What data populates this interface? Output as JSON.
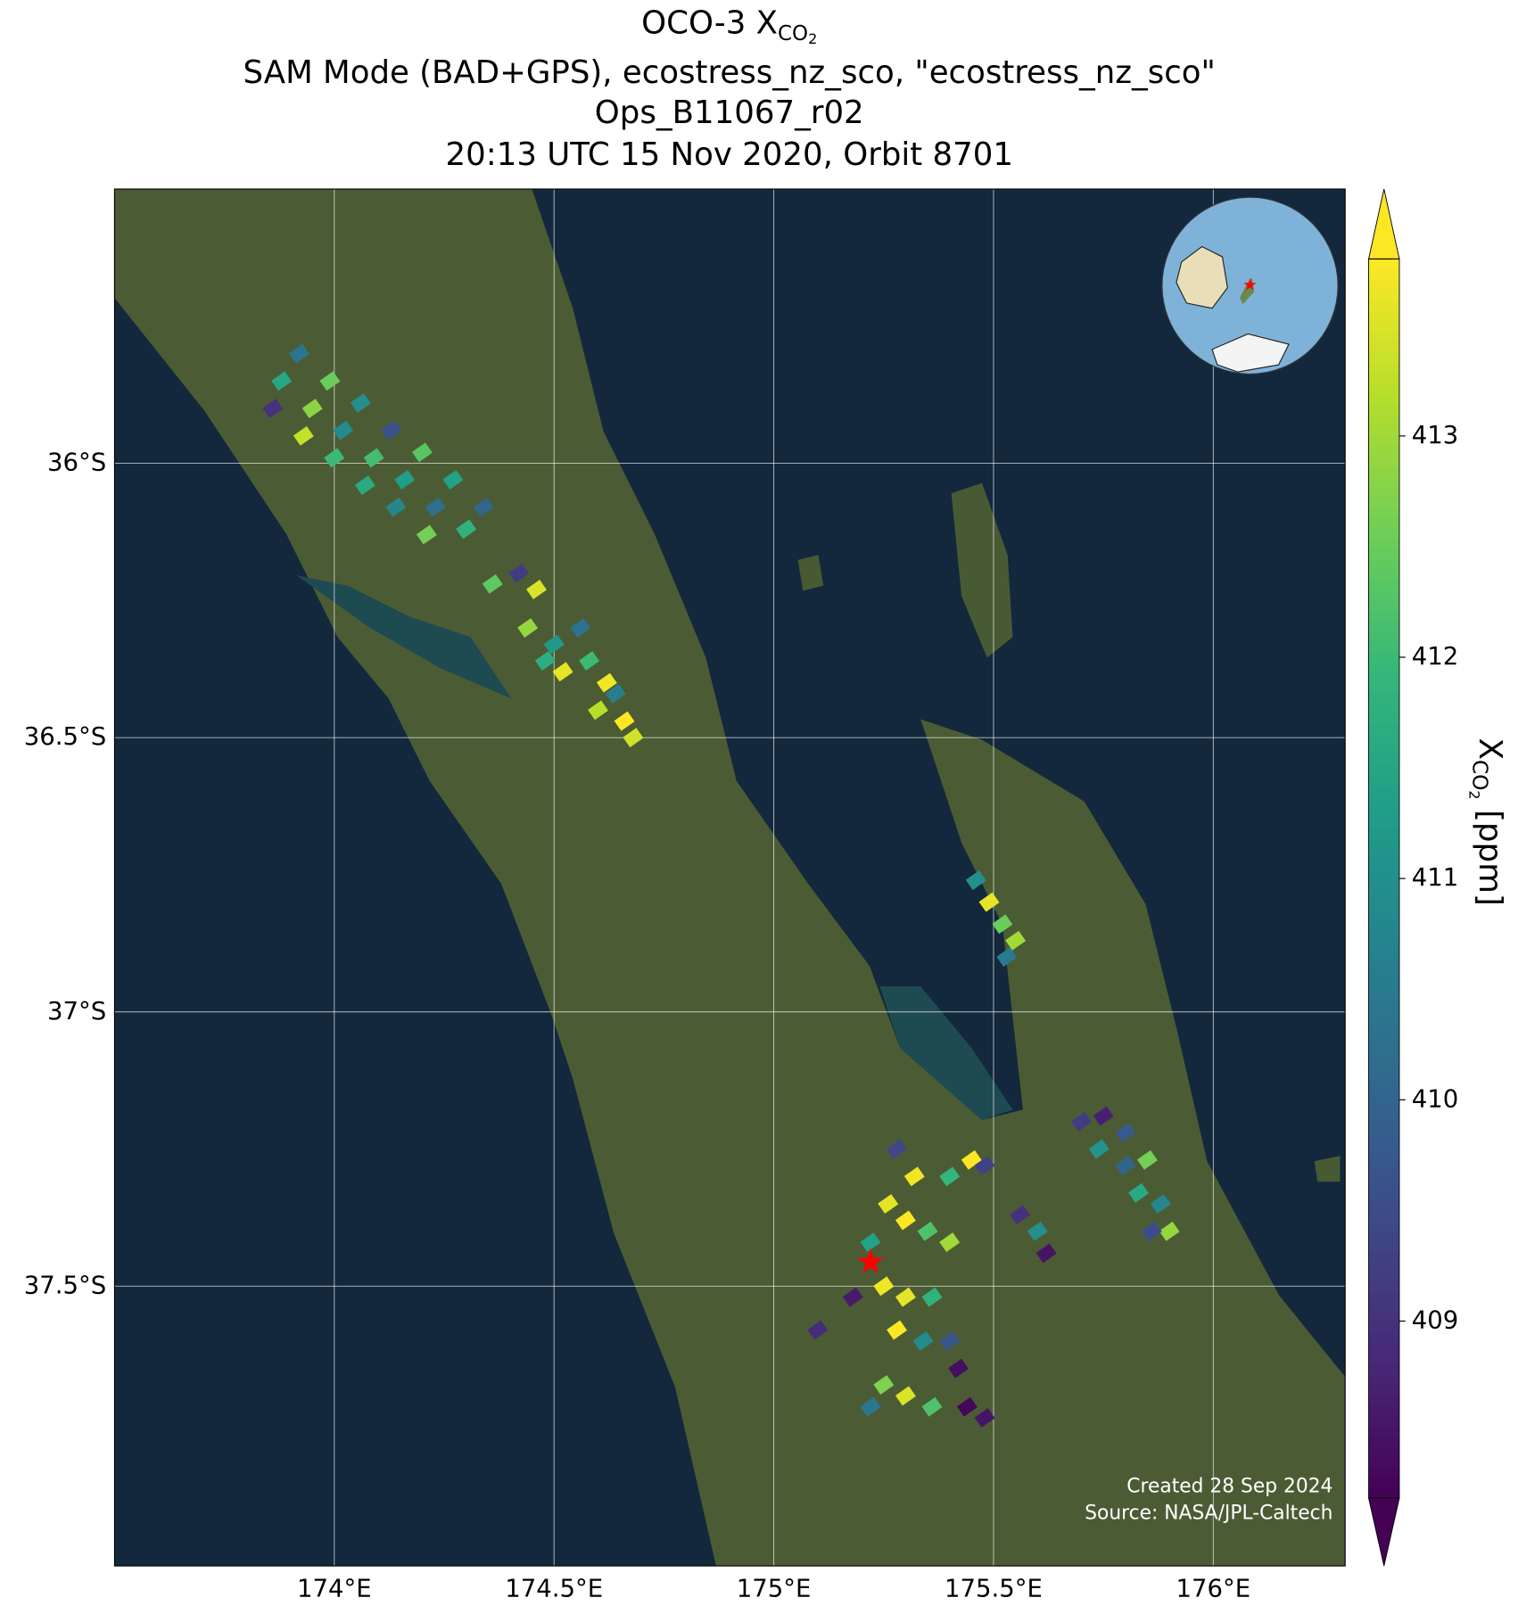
{
  "chart_data": {
    "type": "map",
    "title": {
      "main": "OCO-3 X",
      "sub": "CO",
      "subsub": "2"
    },
    "title_lines": [
      "SAM Mode (BAD+GPS), ecostress_nz_sco, \"ecostress_nz_sco\"",
      "Ops_B11067_r02",
      "20:13 UTC 15 Nov 2020, Orbit 8701"
    ],
    "xlim": [
      173.5,
      176.3
    ],
    "ylim": [
      -38.01,
      -35.5
    ],
    "xticks": [
      {
        "value": 174,
        "label": "174°E"
      },
      {
        "value": 174.5,
        "label": "174.5°E"
      },
      {
        "value": 175,
        "label": "175°E"
      },
      {
        "value": 175.5,
        "label": "175.5°E"
      },
      {
        "value": 176,
        "label": "176°E"
      }
    ],
    "yticks": [
      {
        "value": -36,
        "label": "36°S"
      },
      {
        "value": -36.5,
        "label": "36.5°S"
      },
      {
        "value": -37,
        "label": "37°S"
      },
      {
        "value": -37.5,
        "label": "37.5°S"
      }
    ],
    "grid": true,
    "colorbar": {
      "label": {
        "main": "X",
        "sub": "CO",
        "subsub": "2",
        "unit": " [ppm]"
      },
      "clim": [
        408.2,
        413.8
      ],
      "ticks": [
        409,
        410,
        411,
        412,
        413
      ],
      "colormap": [
        "#440154",
        "#482878",
        "#3e4989",
        "#31688e",
        "#26828e",
        "#1f9e89",
        "#35b779",
        "#6ece58",
        "#b5de2b",
        "#fde725"
      ]
    },
    "target": {
      "lon": 175.22,
      "lat": -37.46,
      "color": "#ff0000"
    },
    "footprints": {
      "lon": [
        173.88,
        173.95,
        174.02,
        174.09,
        174.16,
        174.23,
        174.3,
        173.92,
        173.99,
        174.06,
        174.13,
        174.2,
        174.27,
        174.34,
        173.86,
        173.93,
        174.0,
        174.07,
        174.14,
        174.21,
        174.36,
        174.42,
        174.46,
        174.44,
        174.5,
        174.56,
        174.52,
        174.58,
        174.62,
        174.6,
        174.66,
        174.64,
        174.68,
        174.48,
        175.46,
        175.49,
        175.52,
        175.55,
        175.53,
        175.7,
        175.75,
        175.8,
        175.74,
        175.8,
        175.85,
        175.83,
        175.88,
        175.9,
        175.86,
        175.28,
        175.32,
        175.4,
        175.45,
        175.48,
        175.26,
        175.3,
        175.35,
        175.22,
        175.4,
        175.56,
        175.6,
        175.62,
        175.25,
        175.3,
        175.36,
        175.18,
        175.28,
        175.34,
        175.4,
        175.42,
        175.25,
        175.3,
        175.36,
        175.44,
        175.48,
        175.22,
        175.1
      ],
      "lat": [
        -35.85,
        -35.9,
        -35.94,
        -35.99,
        -36.03,
        -36.08,
        -36.12,
        -35.8,
        -35.85,
        -35.89,
        -35.94,
        -35.98,
        -36.03,
        -36.08,
        -35.9,
        -35.95,
        -35.99,
        -36.04,
        -36.08,
        -36.13,
        -36.22,
        -36.2,
        -36.23,
        -36.3,
        -36.33,
        -36.3,
        -36.38,
        -36.36,
        -36.4,
        -36.45,
        -36.47,
        -36.42,
        -36.5,
        -36.36,
        -36.76,
        -36.8,
        -36.84,
        -36.87,
        -36.9,
        -37.2,
        -37.19,
        -37.22,
        -37.25,
        -37.28,
        -37.27,
        -37.33,
        -37.35,
        -37.4,
        -37.4,
        -37.25,
        -37.3,
        -37.3,
        -37.27,
        -37.28,
        -37.35,
        -37.38,
        -37.4,
        -37.42,
        -37.42,
        -37.37,
        -37.4,
        -37.44,
        -37.5,
        -37.52,
        -37.52,
        -37.52,
        -37.58,
        -37.6,
        -37.6,
        -37.65,
        -37.68,
        -37.7,
        -37.72,
        -37.72,
        -37.74,
        -37.72,
        -37.58
      ],
      "values": [
        411.5,
        412.8,
        410.9,
        412.1,
        411.3,
        410.2,
        411.8,
        410.4,
        412.5,
        411.0,
        409.6,
        412.3,
        411.4,
        410.0,
        409.0,
        413.3,
        412.0,
        411.6,
        410.8,
        412.6,
        412.4,
        409.2,
        413.5,
        412.9,
        411.2,
        410.3,
        413.6,
        412.0,
        413.7,
        413.2,
        413.8,
        410.6,
        413.4,
        411.7,
        411.0,
        413.6,
        412.5,
        413.0,
        410.5,
        409.2,
        408.7,
        409.8,
        411.1,
        410.0,
        412.6,
        411.6,
        410.8,
        412.9,
        409.5,
        409.4,
        413.7,
        411.9,
        413.8,
        409.3,
        413.6,
        413.9,
        412.2,
        411.4,
        413.0,
        409.0,
        411.0,
        408.5,
        413.7,
        413.6,
        411.8,
        408.6,
        413.8,
        410.9,
        409.7,
        408.4,
        412.7,
        413.5,
        412.2,
        408.3,
        408.5,
        410.4,
        408.9
      ]
    },
    "credits": [
      "Created 28 Sep 2024",
      "Source: NASA/JPL-Caltech"
    ]
  }
}
